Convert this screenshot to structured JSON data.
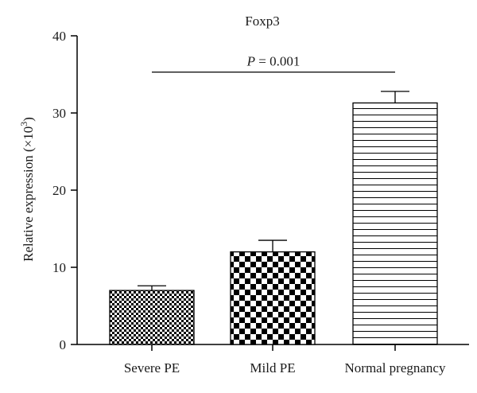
{
  "chart_data": {
    "type": "bar",
    "title": "Foxp3",
    "ylabel_prefix": "Relative expression (×10",
    "ylabel_sup": "3",
    "ylabel_suffix": ")",
    "xlabel": "",
    "categories": [
      "Severe PE",
      "Mild PE",
      "Normal pregnancy"
    ],
    "values": [
      7.0,
      12.0,
      31.3
    ],
    "errors": [
      0.6,
      1.5,
      1.5
    ],
    "bar_patterns": [
      "fine-checker",
      "coarse-checker",
      "horizontal-lines"
    ],
    "ylim": [
      0,
      40
    ],
    "yticks": [
      0,
      10,
      20,
      30,
      40
    ],
    "ytick_labels": [
      "0",
      "10",
      "20",
      "30",
      "40"
    ],
    "grid": false,
    "annotation": {
      "p_label": "P",
      "p_value_text": " = 0.001",
      "y": 35.3,
      "from_category": 0,
      "to_category": 2
    }
  }
}
